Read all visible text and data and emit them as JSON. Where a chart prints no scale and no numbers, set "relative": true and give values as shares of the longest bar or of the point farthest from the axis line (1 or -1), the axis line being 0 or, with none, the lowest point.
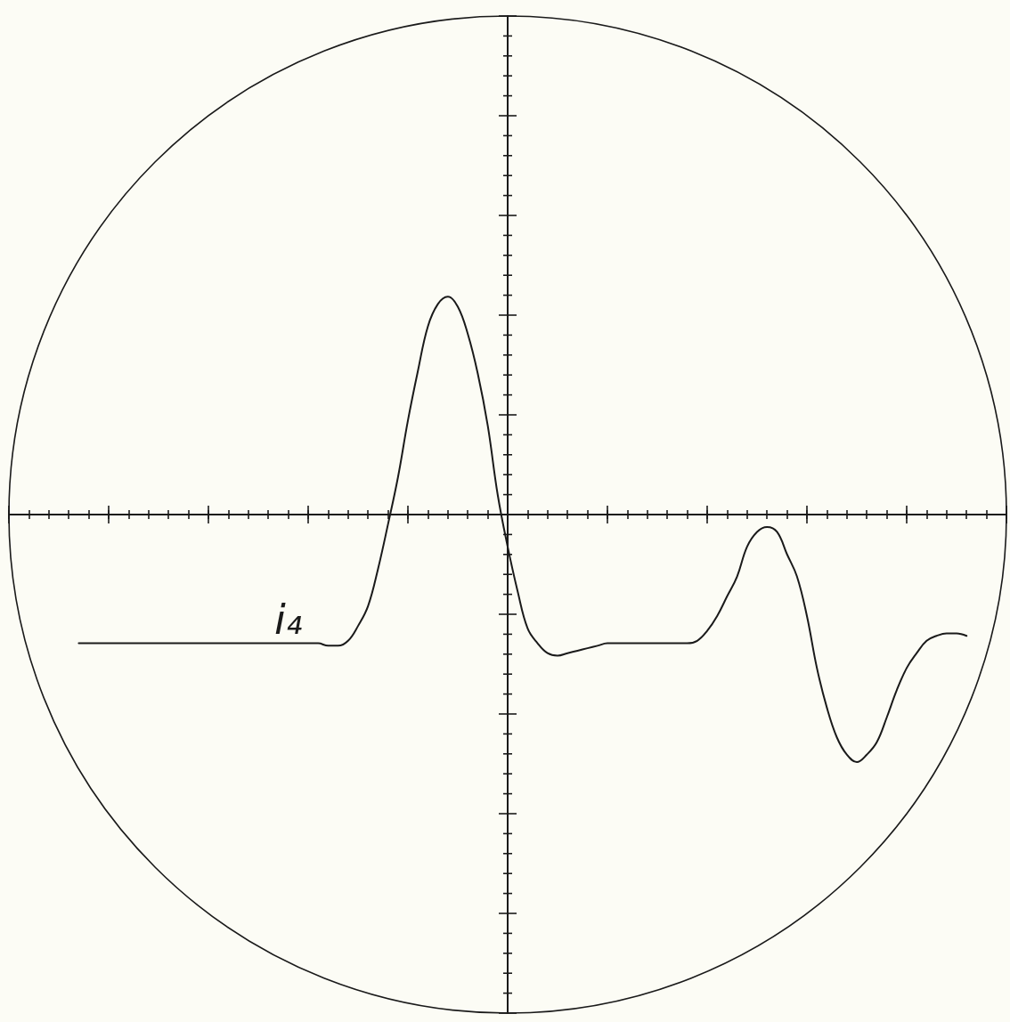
{
  "chart_data": {
    "type": "line",
    "relative": true,
    "categories": [
      null,
      null,
      null,
      null,
      null,
      null,
      null,
      null,
      null,
      null,
      null,
      null,
      null,
      null,
      null,
      null,
      null,
      null,
      null,
      null,
      null,
      null,
      null,
      null,
      null,
      null,
      null,
      null,
      null,
      null,
      null,
      null,
      null,
      null,
      null,
      null,
      null,
      null,
      null,
      null,
      null,
      null,
      null,
      null,
      null,
      null,
      null,
      null,
      null,
      null,
      null,
      null,
      null,
      null,
      null,
      null,
      null,
      null,
      null,
      null,
      null,
      null,
      null,
      null,
      null,
      null,
      null,
      null,
      null,
      null,
      null,
      null,
      null,
      null,
      null,
      null,
      null,
      null,
      null,
      null,
      null,
      null,
      null,
      null,
      null,
      null,
      null,
      null,
      null,
      null,
      null,
      null,
      null,
      null,
      null,
      null,
      null,
      null,
      null,
      null,
      null
    ],
    "series": [
      {
        "name": "i₄",
        "color": "#1a1a1a",
        "values": [
          null,
          null,
          null,
          null,
          null,
          null,
          null,
          -0.52,
          -0.52,
          -0.52,
          -0.52,
          -0.52,
          -0.52,
          -0.52,
          -0.52,
          -0.52,
          -0.52,
          -0.52,
          -0.52,
          -0.52,
          -0.52,
          -0.52,
          -0.52,
          -0.52,
          -0.52,
          -0.52,
          -0.52,
          -0.52,
          -0.52,
          -0.52,
          -0.52,
          -0.52,
          -0.53,
          -0.53,
          -0.51,
          -0.45,
          -0.37,
          -0.22,
          -0.04,
          0.15,
          0.38,
          0.58,
          0.76,
          0.85,
          0.88,
          0.84,
          0.73,
          0.57,
          0.36,
          0.08,
          -0.13,
          -0.31,
          -0.46,
          -0.52,
          -0.56,
          -0.57,
          -0.56,
          -0.55,
          -0.54,
          -0.53,
          -0.52,
          -0.52,
          -0.52,
          -0.52,
          -0.52,
          -0.52,
          -0.52,
          -0.52,
          -0.52,
          -0.51,
          -0.47,
          -0.41,
          -0.33,
          -0.25,
          -0.13,
          -0.07,
          -0.05,
          -0.07,
          -0.16,
          -0.25,
          -0.41,
          -0.62,
          -0.78,
          -0.9,
          -0.97,
          -1,
          -0.97,
          -0.92,
          -0.82,
          -0.71,
          -0.62,
          -0.56,
          -0.51,
          -0.49,
          -0.48,
          -0.48,
          -0.49,
          null,
          null,
          null,
          null
        ]
      }
    ]
  }
}
